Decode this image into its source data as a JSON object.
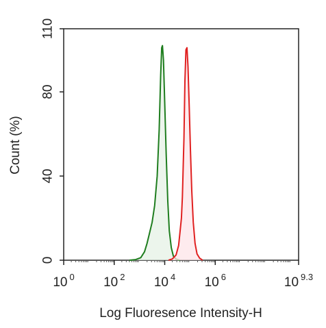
{
  "chart_data": {
    "type": "area",
    "xlabel": "Log Fluoresence Intensity-H",
    "ylabel": "Count  (%)",
    "x_scale": "log10",
    "xlim": [
      0,
      9.3
    ],
    "ylim": [
      0,
      110
    ],
    "x_ticks": [
      {
        "base": "10",
        "exp": "0",
        "value": 0
      },
      {
        "base": "10",
        "exp": "2",
        "value": 2
      },
      {
        "base": "10",
        "exp": "4",
        "value": 4
      },
      {
        "base": "10",
        "exp": "6",
        "value": 6
      },
      {
        "base": "10",
        "exp": "9.3",
        "value": 9.3
      }
    ],
    "y_ticks": [
      {
        "label": "0",
        "value": 0
      },
      {
        "label": "40",
        "value": 40
      },
      {
        "label": "80",
        "value": 80
      },
      {
        "label": "110",
        "value": 110
      }
    ],
    "legend": "none",
    "grid": false,
    "series": [
      {
        "color": "#1e7d1e",
        "fill": "#e6f2e6",
        "points": [
          [
            2.6,
            0
          ],
          [
            2.85,
            0.3
          ],
          [
            3.05,
            1.2
          ],
          [
            3.2,
            4
          ],
          [
            3.3,
            8
          ],
          [
            3.4,
            13
          ],
          [
            3.5,
            18
          ],
          [
            3.6,
            26
          ],
          [
            3.7,
            40
          ],
          [
            3.78,
            62
          ],
          [
            3.84,
            88
          ],
          [
            3.88,
            101
          ],
          [
            3.91,
            102
          ],
          [
            3.95,
            95
          ],
          [
            4.0,
            75
          ],
          [
            4.06,
            50
          ],
          [
            4.12,
            28
          ],
          [
            4.18,
            14
          ],
          [
            4.26,
            6
          ],
          [
            4.34,
            2
          ],
          [
            4.45,
            0.5
          ],
          [
            4.6,
            0
          ]
        ]
      },
      {
        "color": "#e02020",
        "fill": "#fde4e8",
        "points": [
          [
            4.15,
            0
          ],
          [
            4.3,
            0.6
          ],
          [
            4.45,
            2.5
          ],
          [
            4.55,
            7
          ],
          [
            4.6,
            13
          ],
          [
            4.66,
            20
          ],
          [
            4.7,
            30
          ],
          [
            4.76,
            58
          ],
          [
            4.8,
            85
          ],
          [
            4.84,
            100
          ],
          [
            4.88,
            101
          ],
          [
            4.92,
            92
          ],
          [
            4.97,
            73
          ],
          [
            5.02,
            52
          ],
          [
            5.07,
            33
          ],
          [
            5.13,
            18
          ],
          [
            5.2,
            8
          ],
          [
            5.28,
            3
          ],
          [
            5.38,
            1
          ],
          [
            5.5,
            0
          ]
        ]
      }
    ]
  }
}
